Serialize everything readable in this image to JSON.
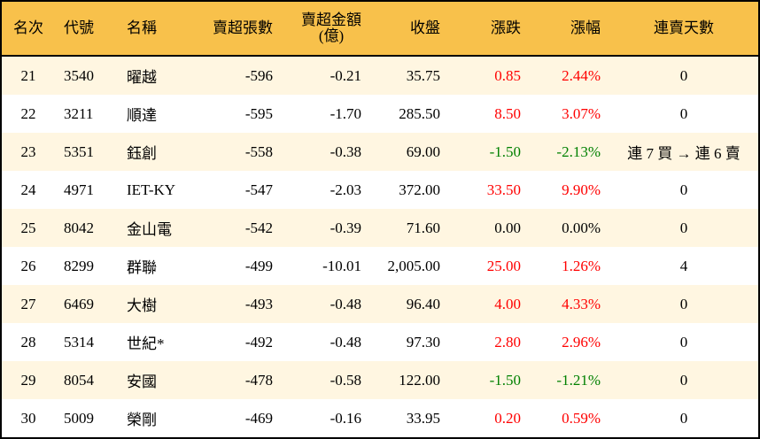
{
  "header": [
    "名次",
    "代號",
    "名稱",
    "賣超張數",
    "賣超金額\n(億)",
    "收盤",
    "漲跌",
    "漲幅",
    "連賣天數"
  ],
  "colors": {
    "header_bg": "#F8C14B",
    "row_alt": "#FFF6E1",
    "up": "#FF0000",
    "down": "#008000"
  },
  "rows": [
    {
      "rank": "21",
      "code": "3540",
      "name": "曜越",
      "shares": "-596",
      "amount": "-0.21",
      "close": "35.75",
      "change": "0.85",
      "pct": "2.44%",
      "days": "0",
      "dir": "red"
    },
    {
      "rank": "22",
      "code": "3211",
      "name": "順達",
      "shares": "-595",
      "amount": "-1.70",
      "close": "285.50",
      "change": "8.50",
      "pct": "3.07%",
      "days": "0",
      "dir": "red"
    },
    {
      "rank": "23",
      "code": "5351",
      "name": "鈺創",
      "shares": "-558",
      "amount": "-0.38",
      "close": "69.00",
      "change": "-1.50",
      "pct": "-2.13%",
      "days": "連 7 買 → 連 6 賣",
      "dir": "green"
    },
    {
      "rank": "24",
      "code": "4971",
      "name": "IET-KY",
      "shares": "-547",
      "amount": "-2.03",
      "close": "372.00",
      "change": "33.50",
      "pct": "9.90%",
      "days": "0",
      "dir": "red"
    },
    {
      "rank": "25",
      "code": "8042",
      "name": "金山電",
      "shares": "-542",
      "amount": "-0.39",
      "close": "71.60",
      "change": "0.00",
      "pct": "0.00%",
      "days": "0",
      "dir": "black"
    },
    {
      "rank": "26",
      "code": "8299",
      "name": "群聯",
      "shares": "-499",
      "amount": "-10.01",
      "close": "2,005.00",
      "change": "25.00",
      "pct": "1.26%",
      "days": "4",
      "dir": "red"
    },
    {
      "rank": "27",
      "code": "6469",
      "name": "大樹",
      "shares": "-493",
      "amount": "-0.48",
      "close": "96.40",
      "change": "4.00",
      "pct": "4.33%",
      "days": "0",
      "dir": "red"
    },
    {
      "rank": "28",
      "code": "5314",
      "name": "世紀*",
      "shares": "-492",
      "amount": "-0.48",
      "close": "97.30",
      "change": "2.80",
      "pct": "2.96%",
      "days": "0",
      "dir": "red"
    },
    {
      "rank": "29",
      "code": "8054",
      "name": "安國",
      "shares": "-478",
      "amount": "-0.58",
      "close": "122.00",
      "change": "-1.50",
      "pct": "-1.21%",
      "days": "0",
      "dir": "green"
    },
    {
      "rank": "30",
      "code": "5009",
      "name": "榮剛",
      "shares": "-469",
      "amount": "-0.16",
      "close": "33.95",
      "change": "0.20",
      "pct": "0.59%",
      "days": "0",
      "dir": "red"
    }
  ]
}
